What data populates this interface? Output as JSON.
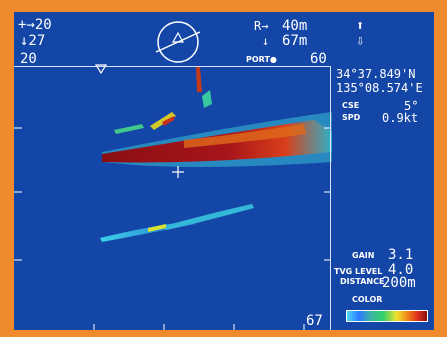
{
  "header": {
    "left_top": "+→20",
    "left_bottom": "↓27",
    "range_label": "R→",
    "range_value": "40m",
    "depth_label": "↓",
    "depth_value": "67m",
    "arrow_up": "⬆",
    "arrow_down": "⇩"
  },
  "scale": {
    "left": "20",
    "port": "PORT●",
    "right": "60",
    "bottom": "67"
  },
  "position": {
    "lat": "34°37.849'N",
    "lon": "135°08.574'E"
  },
  "nav": {
    "cse_label": "CSE",
    "cse_value": "5°",
    "spd_label": "SPD",
    "spd_value": "0.9kt"
  },
  "settings": {
    "gain_label": "GAIN",
    "gain_value": "3.1",
    "tvg_label": "TVG LEVEL",
    "tvg_value": "4.0",
    "distance_label": "DISTANCE",
    "distance_value": "200m",
    "color_label": "COLOR"
  },
  "colors": {
    "background": "#1446a8",
    "frame": "#ef8b2c",
    "echo_strong": "#a0151a",
    "echo_mid": "#e0661a",
    "echo_weak": "#36d0d8"
  }
}
